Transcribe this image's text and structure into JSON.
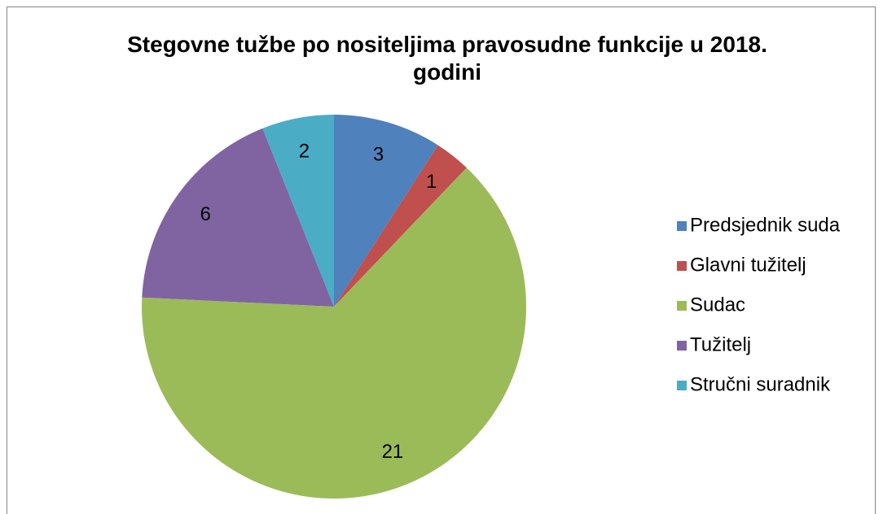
{
  "chart_data": {
    "type": "pie",
    "title": "Stegovne tužbe po nositeljima pravosudne funkcije u 2018. godini",
    "categories": [
      "Predsjednik suda",
      "Glavni tužitelj",
      "Sudac",
      "Tužitelj",
      "Stručni suradnik"
    ],
    "values": [
      3,
      1,
      21,
      6,
      2
    ],
    "colors": [
      "#4f81bd",
      "#c0504d",
      "#9bbb59",
      "#8064a2",
      "#4bacc6"
    ],
    "legend": "right"
  }
}
